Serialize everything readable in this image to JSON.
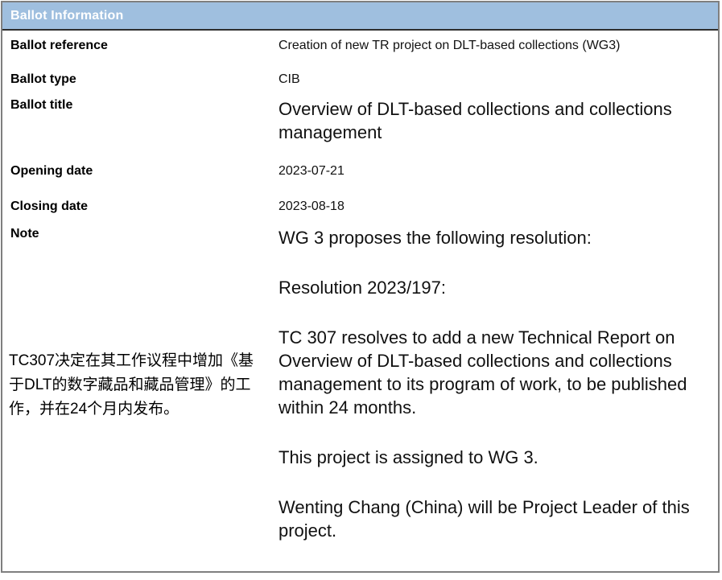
{
  "header": {
    "title": "Ballot Information"
  },
  "colors": {
    "header_bg": "#9fbfdf",
    "header_text": "#ffffff",
    "outer_border": "#7f7f7f",
    "header_divider": "#2f2f2f",
    "body_text": "#111111"
  },
  "rows": {
    "reference": {
      "label": "Ballot reference",
      "value": "Creation of new TR project on DLT-based collections (WG3)"
    },
    "type": {
      "label": "Ballot type",
      "value": "CIB"
    },
    "title": {
      "label": "Ballot title",
      "value": "Overview of DLT-based collections and collections management"
    },
    "opening_date": {
      "label": "Opening date",
      "value": "2023-07-21"
    },
    "closing_date": {
      "label": "Closing date",
      "value": "2023-08-18"
    },
    "note": {
      "label": "Note",
      "annotation_zh": "TC307决定在其工作议程中增加《基于DLT的数字藏品和藏品管理》的工作，并在24个月内发布。",
      "paragraphs": [
        "WG 3 proposes the following resolution:",
        "Resolution 2023/197:",
        "TC 307 resolves to add a new Technical Report on Overview of DLT-based collections and collections management to its program of work, to be published within 24 months.",
        "This project is assigned to WG 3.",
        "Wenting Chang (China) will be Project Leader of this project."
      ]
    }
  }
}
